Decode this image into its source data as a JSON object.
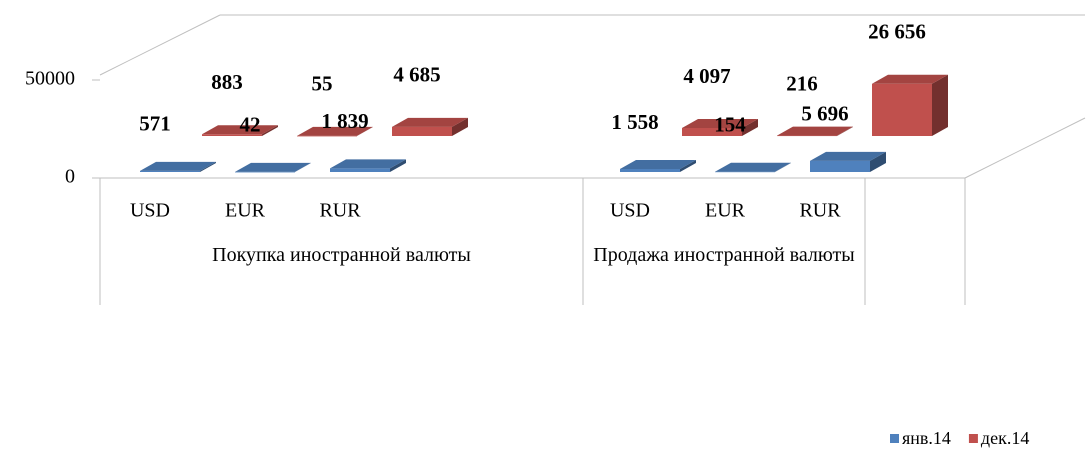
{
  "chart_data": {
    "type": "bar3d",
    "categories": [
      "USD",
      "EUR",
      "RUR",
      "USD",
      "EUR",
      "RUR"
    ],
    "category_groups": [
      "Покупка иностранной валюты",
      "Продажа иностранной валюты"
    ],
    "series": [
      {
        "name": "янв.14",
        "color": "#4f81bd",
        "values": [
          571,
          42,
          1839,
          1558,
          154,
          5696
        ],
        "value_labels": [
          "571",
          "42",
          "1 839",
          "1 558",
          "154",
          "5 696"
        ]
      },
      {
        "name": "дек.14",
        "color": "#c0504d",
        "values": [
          883,
          55,
          4685,
          4097,
          216,
          26656
        ],
        "value_labels": [
          "883",
          "55",
          "4 685",
          "4 097",
          "216",
          "26 656"
        ]
      }
    ],
    "ylim": [
      0,
      50000
    ],
    "yticks": [
      0,
      50000
    ],
    "legend": "bottom-right"
  }
}
